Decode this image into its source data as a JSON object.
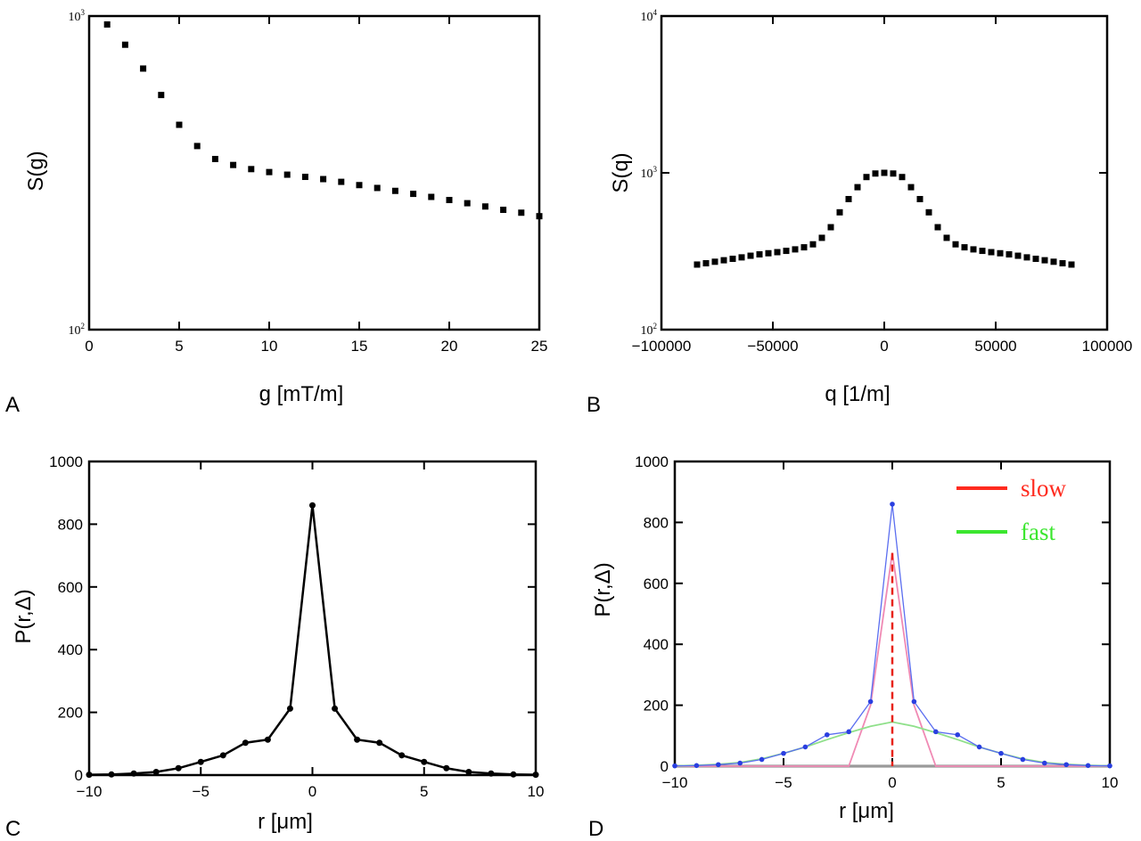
{
  "chart_data": [
    {
      "panel": "A",
      "type": "scatter",
      "xlabel": "g [mT/m]",
      "ylabel": "S(g)",
      "xlim": [
        0,
        25
      ],
      "ylim": [
        100,
        1000
      ],
      "yscale": "log",
      "xticks": [
        0,
        5,
        10,
        15,
        20,
        25
      ],
      "ytick_labels": [
        {
          "base": "10",
          "exp": "2",
          "value": 100
        },
        {
          "base": "10",
          "exp": "3",
          "value": 1000
        }
      ],
      "x": [
        1,
        2,
        3,
        4,
        5,
        6,
        7,
        8,
        9,
        10,
        11,
        12,
        13,
        14,
        15,
        16,
        17,
        18,
        19,
        20,
        21,
        22,
        23,
        24,
        25
      ],
      "y": [
        940,
        810,
        680,
        560,
        450,
        385,
        350,
        335,
        325,
        318,
        312,
        307,
        302,
        296,
        289,
        283,
        277,
        271,
        265,
        259,
        253,
        247,
        241,
        236,
        230
      ]
    },
    {
      "panel": "B",
      "type": "scatter",
      "xlabel": "q [1/m]",
      "ylabel": "S(q)",
      "xlim": [
        -100000,
        100000
      ],
      "ylim": [
        100,
        10000
      ],
      "yscale": "log",
      "xticks": [
        -100000,
        -50000,
        0,
        50000,
        100000
      ],
      "ytick_labels": [
        {
          "base": "10",
          "exp": "2",
          "value": 100
        },
        {
          "base": "10",
          "exp": "3",
          "value": 1000
        },
        {
          "base": "10",
          "exp": "4",
          "value": 10000
        }
      ],
      "x": [
        -84000,
        -80000,
        -76000,
        -72000,
        -68000,
        -64000,
        -60000,
        -56000,
        -52000,
        -48000,
        -44000,
        -40000,
        -36000,
        -32000,
        -28000,
        -24000,
        -20000,
        -16000,
        -12000,
        -8000,
        -4000,
        0,
        4000,
        8000,
        12000,
        16000,
        20000,
        24000,
        28000,
        32000,
        36000,
        40000,
        44000,
        48000,
        52000,
        56000,
        60000,
        64000,
        68000,
        72000,
        76000,
        80000,
        84000
      ],
      "y": [
        260,
        265,
        271,
        277,
        283,
        289,
        296,
        302,
        307,
        312,
        318,
        325,
        335,
        350,
        385,
        450,
        560,
        680,
        810,
        940,
        990,
        1000,
        990,
        940,
        810,
        680,
        560,
        450,
        385,
        350,
        335,
        325,
        318,
        312,
        307,
        302,
        296,
        289,
        283,
        277,
        271,
        265,
        260
      ]
    },
    {
      "panel": "C",
      "type": "line",
      "xlabel": "r [μm]",
      "ylabel": "P(r,Δ)",
      "xlim": [
        -10,
        10
      ],
      "ylim": [
        0,
        1000
      ],
      "xticks": [
        -10,
        -5,
        0,
        5,
        10
      ],
      "yticks": [
        0,
        200,
        400,
        600,
        800,
        1000
      ],
      "x": [
        -10,
        -9,
        -8,
        -7,
        -6,
        -5,
        -4,
        -3,
        -2,
        -1,
        0,
        1,
        2,
        3,
        4,
        5,
        6,
        7,
        8,
        9,
        10
      ],
      "y": [
        1,
        2,
        5,
        10,
        22,
        42,
        63,
        103,
        113,
        212,
        860,
        212,
        113,
        103,
        63,
        42,
        22,
        10,
        5,
        2,
        1
      ]
    },
    {
      "panel": "D",
      "type": "line",
      "xlabel": "r [μm]",
      "ylabel": "P(r,Δ)",
      "xlim": [
        -10,
        10
      ],
      "ylim": [
        0,
        1000
      ],
      "xticks": [
        -10,
        -5,
        0,
        5,
        10
      ],
      "yticks": [
        0,
        200,
        400,
        600,
        800,
        1000
      ],
      "legend_position": "top-right",
      "legend": [
        {
          "label": "slow",
          "color": "#ff2b1f"
        },
        {
          "label": "fast",
          "color": "#3be62f"
        }
      ],
      "series": [
        {
          "role": "total",
          "color": "#5b6ef0",
          "x": [
            -10,
            -9,
            -8,
            -7,
            -6,
            -5,
            -4,
            -3,
            -2,
            -1,
            0,
            1,
            2,
            3,
            4,
            5,
            6,
            7,
            8,
            9,
            10
          ],
          "y": [
            1,
            2,
            5,
            10,
            22,
            42,
            63,
            103,
            113,
            212,
            860,
            212,
            113,
            103,
            63,
            42,
            22,
            10,
            5,
            2,
            1
          ]
        },
        {
          "role": "slow",
          "color": "#f08ab4",
          "x": [
            -10,
            -2,
            -1,
            0,
            1,
            2,
            10
          ],
          "y": [
            0,
            0,
            200,
            700,
            200,
            0,
            0
          ]
        },
        {
          "role": "fast",
          "color": "#8fe08a",
          "x": [
            -10,
            -9,
            -8,
            -7,
            -6,
            -5,
            -4,
            -3,
            -2,
            -1,
            0,
            1,
            2,
            3,
            4,
            5,
            6,
            7,
            8,
            9,
            10
          ],
          "y": [
            1,
            3,
            6,
            12,
            24,
            42,
            63,
            87,
            110,
            131,
            145,
            131,
            110,
            87,
            63,
            42,
            24,
            12,
            6,
            3,
            1
          ]
        }
      ],
      "slow_center_x": 0,
      "slow_center_y": 700
    }
  ]
}
